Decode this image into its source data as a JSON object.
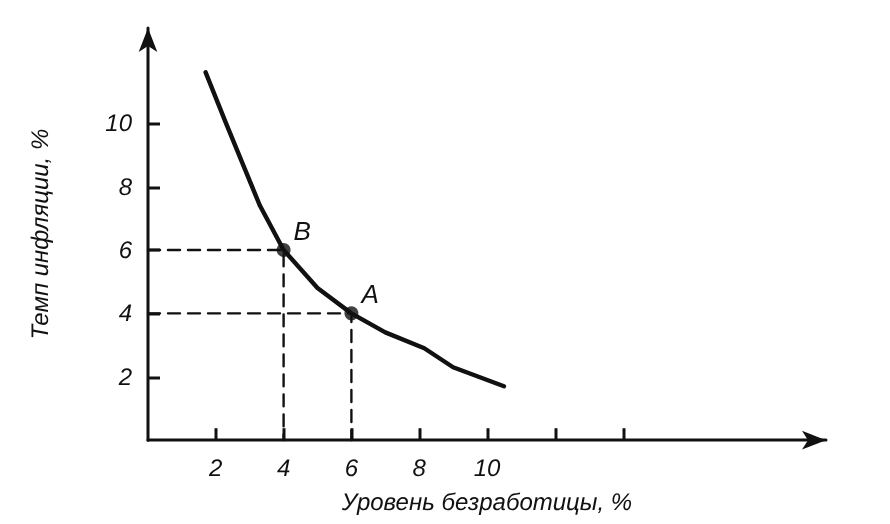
{
  "chart_data": {
    "type": "line",
    "xlabel": "Уровень безработицы, %",
    "ylabel": "Темп инфляции, %",
    "xlim": [
      0,
      20
    ],
    "ylim": [
      0,
      13
    ],
    "xticks": [
      2,
      4,
      6,
      8,
      10,
      {
        "value": 12,
        "label": null
      },
      {
        "value": 14,
        "label": null
      }
    ],
    "yticks": [
      2,
      4,
      6,
      8,
      10
    ],
    "series": [
      {
        "color": "#111111",
        "x": [
          1.7,
          2.3,
          2.8,
          3.3,
          4,
          5,
          6,
          7,
          8.15,
          9,
          10.5
        ],
        "values": [
          11.6,
          10,
          8.7,
          7.4,
          6,
          4.8,
          4,
          3.4,
          2.9,
          2.3,
          1.7
        ],
        "marker": "none",
        "line_style": "solid"
      },
      {
        "color": "#111111",
        "x": [
          0,
          4,
          4
        ],
        "values": [
          6,
          6,
          0
        ],
        "marker": "none",
        "line_style": "dashed"
      },
      {
        "color": "#111111",
        "x": [
          0,
          6,
          6
        ],
        "values": [
          4,
          4,
          0
        ],
        "marker": "none",
        "line_style": "dashed"
      },
      {
        "type": "scatter",
        "color": "#111111",
        "x": [
          4,
          6
        ],
        "values": [
          6,
          4
        ],
        "marker": "circle"
      }
    ],
    "annotations": [
      {
        "text": "B",
        "x": 4,
        "y": 6
      },
      {
        "text": "A",
        "x": 6,
        "y": 4
      }
    ]
  }
}
